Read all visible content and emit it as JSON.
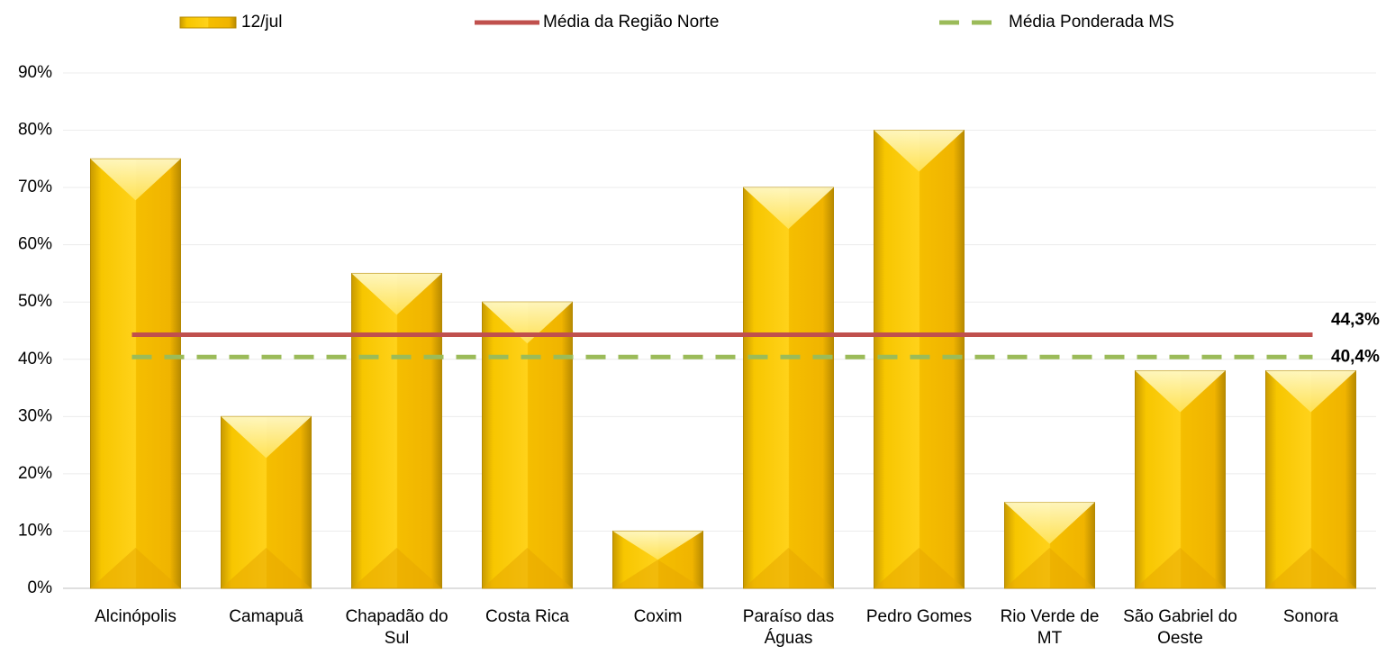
{
  "chart_data": {
    "type": "bar",
    "categories": [
      "Alcinópolis",
      "Camapuã",
      "Chapadão do Sul",
      "Costa Rica",
      "Coxim",
      "Paraíso das Águas",
      "Pedro Gomes",
      "Rio Verde de MT",
      "São Gabriel do Oeste",
      "Sonora"
    ],
    "series": [
      {
        "name": "12/jul",
        "color": "#f5c000",
        "values": [
          75,
          30,
          55,
          50,
          10,
          70,
          80,
          15,
          38,
          38
        ]
      }
    ],
    "reference_lines": [
      {
        "name": "Média da Região Norte",
        "color": "#c0504d",
        "style": "solid",
        "value": 44.3,
        "value_label": "44,3%"
      },
      {
        "name": "Média Ponderada MS",
        "color": "#9bbb59",
        "style": "dashed",
        "value": 40.4,
        "value_label": "40,4%"
      }
    ],
    "ylim": [
      0,
      90
    ],
    "yticks": [
      {
        "value": 0,
        "label": "0%"
      },
      {
        "value": 10,
        "label": "10%"
      },
      {
        "value": 20,
        "label": "20%"
      },
      {
        "value": 30,
        "label": "30%"
      },
      {
        "value": 40,
        "label": "40%"
      },
      {
        "value": 50,
        "label": "50%"
      },
      {
        "value": 60,
        "label": "60%"
      },
      {
        "value": 70,
        "label": "70%"
      },
      {
        "value": 80,
        "label": "80%"
      },
      {
        "value": 90,
        "label": "90%"
      }
    ],
    "grid": true
  }
}
